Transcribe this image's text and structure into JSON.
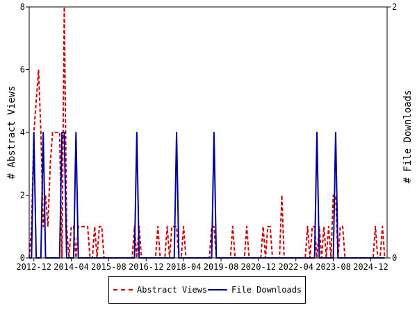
{
  "chart_data": {
    "type": "line",
    "xlabel": "",
    "ylabel_left": "# Abstract Views",
    "ylabel_right": "# File Downloads",
    "y_left_lim": [
      0,
      8
    ],
    "y_left_ticks": [
      "0",
      "2",
      "4",
      "6",
      "8"
    ],
    "y_right_lim": [
      0,
      2
    ],
    "y_right_ticks": [
      "0",
      "2"
    ],
    "x_range": [
      "2012-10",
      "2025-07"
    ],
    "x_ticks": [
      "2012-12",
      "2014-04",
      "2015-08",
      "2016-12",
      "2018-04",
      "2019-08",
      "2020-12",
      "2022-04",
      "2023-08",
      "2024-12"
    ],
    "grid": false,
    "legend_position": "bottom",
    "series": [
      {
        "name": "Abstract Views",
        "axis": "left",
        "color": "#cc0000",
        "style": "dashed",
        "points": [
          [
            "2012-10",
            0
          ],
          [
            "2012-11",
            1
          ],
          [
            "2012-12",
            4
          ],
          [
            "2013-01",
            5
          ],
          [
            "2013-02",
            6
          ],
          [
            "2013-03",
            4
          ],
          [
            "2013-04",
            1
          ],
          [
            "2013-05",
            2
          ],
          [
            "2013-06",
            1
          ],
          [
            "2013-07",
            3
          ],
          [
            "2013-08",
            4
          ],
          [
            "2013-09",
            4
          ],
          [
            "2013-10",
            4
          ],
          [
            "2013-11",
            4
          ],
          [
            "2013-12",
            0
          ],
          [
            "2014-01",
            8
          ],
          [
            "2014-02",
            1
          ],
          [
            "2014-03",
            0
          ],
          [
            "2014-04",
            1
          ],
          [
            "2014-05",
            1
          ],
          [
            "2014-06",
            0
          ],
          [
            "2014-07",
            1
          ],
          [
            "2014-08",
            1
          ],
          [
            "2014-09",
            1
          ],
          [
            "2014-10",
            1
          ],
          [
            "2014-11",
            1
          ],
          [
            "2014-12",
            0
          ],
          [
            "2015-01",
            0
          ],
          [
            "2015-02",
            1
          ],
          [
            "2015-03",
            0
          ],
          [
            "2015-04",
            1
          ],
          [
            "2015-05",
            1
          ],
          [
            "2015-06",
            0
          ],
          [
            "2015-07",
            0
          ],
          [
            "2015-08",
            0
          ],
          [
            "2015-09",
            0
          ],
          [
            "2015-10",
            0
          ],
          [
            "2015-11",
            0
          ],
          [
            "2015-12",
            0
          ],
          [
            "2016-01",
            0
          ],
          [
            "2016-02",
            0
          ],
          [
            "2016-03",
            0
          ],
          [
            "2016-04",
            0
          ],
          [
            "2016-05",
            0
          ],
          [
            "2016-06",
            0
          ],
          [
            "2016-07",
            1
          ],
          [
            "2016-08",
            0
          ],
          [
            "2016-09",
            1
          ],
          [
            "2016-10",
            0
          ],
          [
            "2016-11",
            0
          ],
          [
            "2016-12",
            0
          ],
          [
            "2017-01",
            0
          ],
          [
            "2017-02",
            0
          ],
          [
            "2017-03",
            0
          ],
          [
            "2017-04",
            0
          ],
          [
            "2017-05",
            1
          ],
          [
            "2017-06",
            0
          ],
          [
            "2017-07",
            0
          ],
          [
            "2017-08",
            0
          ],
          [
            "2017-09",
            1
          ],
          [
            "2017-10",
            0
          ],
          [
            "2017-11",
            1
          ],
          [
            "2017-12",
            1
          ],
          [
            "2018-01",
            1
          ],
          [
            "2018-02",
            0
          ],
          [
            "2018-03",
            0
          ],
          [
            "2018-04",
            1
          ],
          [
            "2018-05",
            0
          ],
          [
            "2018-06",
            0
          ],
          [
            "2018-07",
            0
          ],
          [
            "2018-08",
            0
          ],
          [
            "2018-09",
            0
          ],
          [
            "2018-10",
            0
          ],
          [
            "2018-11",
            0
          ],
          [
            "2018-12",
            0
          ],
          [
            "2019-01",
            0
          ],
          [
            "2019-02",
            0
          ],
          [
            "2019-03",
            0
          ],
          [
            "2019-04",
            1
          ],
          [
            "2019-05",
            1
          ],
          [
            "2019-06",
            0
          ],
          [
            "2019-07",
            0
          ],
          [
            "2019-08",
            0
          ],
          [
            "2019-09",
            0
          ],
          [
            "2019-10",
            0
          ],
          [
            "2019-11",
            0
          ],
          [
            "2019-12",
            0
          ],
          [
            "2020-01",
            1
          ],
          [
            "2020-02",
            0
          ],
          [
            "2020-03",
            0
          ],
          [
            "2020-04",
            0
          ],
          [
            "2020-05",
            0
          ],
          [
            "2020-06",
            0
          ],
          [
            "2020-07",
            1
          ],
          [
            "2020-08",
            0
          ],
          [
            "2020-09",
            0
          ],
          [
            "2020-10",
            0
          ],
          [
            "2020-11",
            0
          ],
          [
            "2020-12",
            0
          ],
          [
            "2021-01",
            0
          ],
          [
            "2021-02",
            1
          ],
          [
            "2021-03",
            0
          ],
          [
            "2021-04",
            1
          ],
          [
            "2021-05",
            1
          ],
          [
            "2021-06",
            0
          ],
          [
            "2021-07",
            0
          ],
          [
            "2021-08",
            0
          ],
          [
            "2021-09",
            0
          ],
          [
            "2021-10",
            2
          ],
          [
            "2021-11",
            0
          ],
          [
            "2021-12",
            0
          ],
          [
            "2022-01",
            0
          ],
          [
            "2022-02",
            0
          ],
          [
            "2022-03",
            0
          ],
          [
            "2022-04",
            0
          ],
          [
            "2022-05",
            0
          ],
          [
            "2022-06",
            0
          ],
          [
            "2022-07",
            0
          ],
          [
            "2022-08",
            0
          ],
          [
            "2022-09",
            1
          ],
          [
            "2022-10",
            0
          ],
          [
            "2022-11",
            1
          ],
          [
            "2022-12",
            1
          ],
          [
            "2023-01",
            0
          ],
          [
            "2023-02",
            1
          ],
          [
            "2023-03",
            0
          ],
          [
            "2023-04",
            1
          ],
          [
            "2023-05",
            0
          ],
          [
            "2023-06",
            1
          ],
          [
            "2023-07",
            0
          ],
          [
            "2023-08",
            2
          ],
          [
            "2023-09",
            2
          ],
          [
            "2023-10",
            0
          ],
          [
            "2023-11",
            1
          ],
          [
            "2023-12",
            1
          ],
          [
            "2024-01",
            0
          ],
          [
            "2024-02",
            0
          ],
          [
            "2024-03",
            0
          ],
          [
            "2024-04",
            0
          ],
          [
            "2024-05",
            0
          ],
          [
            "2024-06",
            0
          ],
          [
            "2024-07",
            0
          ],
          [
            "2024-08",
            0
          ],
          [
            "2024-09",
            0
          ],
          [
            "2024-10",
            0
          ],
          [
            "2024-11",
            0
          ],
          [
            "2024-12",
            0
          ],
          [
            "2025-01",
            0
          ],
          [
            "2025-02",
            1
          ],
          [
            "2025-03",
            0
          ],
          [
            "2025-04",
            0
          ],
          [
            "2025-05",
            1
          ],
          [
            "2025-06",
            0
          ]
        ]
      },
      {
        "name": "File Downloads",
        "axis": "right",
        "color": "#000099",
        "style": "solid",
        "points": [
          [
            "2012-10",
            0
          ],
          [
            "2012-11",
            0
          ],
          [
            "2012-12",
            1
          ],
          [
            "2013-01",
            0
          ],
          [
            "2013-02",
            0
          ],
          [
            "2013-03",
            0
          ],
          [
            "2013-04",
            1
          ],
          [
            "2013-05",
            0
          ],
          [
            "2013-06",
            0
          ],
          [
            "2013-07",
            0
          ],
          [
            "2013-08",
            0
          ],
          [
            "2013-09",
            0
          ],
          [
            "2013-10",
            0
          ],
          [
            "2013-11",
            0
          ],
          [
            "2013-12",
            1
          ],
          [
            "2014-01",
            1
          ],
          [
            "2014-02",
            0
          ],
          [
            "2014-03",
            0
          ],
          [
            "2014-04",
            0
          ],
          [
            "2014-05",
            0
          ],
          [
            "2014-06",
            1
          ],
          [
            "2014-07",
            0
          ],
          [
            "2014-08",
            0
          ],
          [
            "2014-09",
            0
          ],
          [
            "2014-10",
            0
          ],
          [
            "2014-11",
            0
          ],
          [
            "2014-12",
            0
          ],
          [
            "2015-01",
            0
          ],
          [
            "2015-02",
            0
          ],
          [
            "2015-03",
            0
          ],
          [
            "2015-04",
            0
          ],
          [
            "2015-05",
            0
          ],
          [
            "2015-06",
            0
          ],
          [
            "2015-07",
            0
          ],
          [
            "2015-08",
            0
          ],
          [
            "2015-09",
            0
          ],
          [
            "2015-10",
            0
          ],
          [
            "2015-11",
            0
          ],
          [
            "2015-12",
            0
          ],
          [
            "2016-01",
            0
          ],
          [
            "2016-02",
            0
          ],
          [
            "2016-03",
            0
          ],
          [
            "2016-04",
            0
          ],
          [
            "2016-05",
            0
          ],
          [
            "2016-06",
            0
          ],
          [
            "2016-07",
            0
          ],
          [
            "2016-08",
            1
          ],
          [
            "2016-09",
            0
          ],
          [
            "2016-10",
            0
          ],
          [
            "2016-11",
            0
          ],
          [
            "2016-12",
            0
          ],
          [
            "2017-01",
            0
          ],
          [
            "2017-02",
            0
          ],
          [
            "2017-03",
            0
          ],
          [
            "2017-04",
            0
          ],
          [
            "2017-05",
            0
          ],
          [
            "2017-06",
            0
          ],
          [
            "2017-07",
            0
          ],
          [
            "2017-08",
            0
          ],
          [
            "2017-09",
            0
          ],
          [
            "2017-10",
            0
          ],
          [
            "2017-11",
            0
          ],
          [
            "2017-12",
            0
          ],
          [
            "2018-01",
            1
          ],
          [
            "2018-02",
            0
          ],
          [
            "2018-03",
            0
          ],
          [
            "2018-04",
            0
          ],
          [
            "2018-05",
            0
          ],
          [
            "2018-06",
            0
          ],
          [
            "2018-07",
            0
          ],
          [
            "2018-08",
            0
          ],
          [
            "2018-09",
            0
          ],
          [
            "2018-10",
            0
          ],
          [
            "2018-11",
            0
          ],
          [
            "2018-12",
            0
          ],
          [
            "2019-01",
            0
          ],
          [
            "2019-02",
            0
          ],
          [
            "2019-03",
            0
          ],
          [
            "2019-04",
            0
          ],
          [
            "2019-05",
            1
          ],
          [
            "2019-06",
            0
          ],
          [
            "2019-07",
            0
          ],
          [
            "2019-08",
            0
          ],
          [
            "2019-09",
            0
          ],
          [
            "2019-10",
            0
          ],
          [
            "2019-11",
            0
          ],
          [
            "2019-12",
            0
          ],
          [
            "2020-01",
            0
          ],
          [
            "2020-02",
            0
          ],
          [
            "2020-03",
            0
          ],
          [
            "2020-04",
            0
          ],
          [
            "2020-05",
            0
          ],
          [
            "2020-06",
            0
          ],
          [
            "2020-07",
            0
          ],
          [
            "2020-08",
            0
          ],
          [
            "2020-09",
            0
          ],
          [
            "2020-10",
            0
          ],
          [
            "2020-11",
            0
          ],
          [
            "2020-12",
            0
          ],
          [
            "2021-01",
            0
          ],
          [
            "2021-02",
            0
          ],
          [
            "2021-03",
            0
          ],
          [
            "2021-04",
            0
          ],
          [
            "2021-05",
            0
          ],
          [
            "2021-06",
            0
          ],
          [
            "2021-07",
            0
          ],
          [
            "2021-08",
            0
          ],
          [
            "2021-09",
            0
          ],
          [
            "2021-10",
            0
          ],
          [
            "2021-11",
            0
          ],
          [
            "2021-12",
            0
          ],
          [
            "2022-01",
            0
          ],
          [
            "2022-02",
            0
          ],
          [
            "2022-03",
            0
          ],
          [
            "2022-04",
            0
          ],
          [
            "2022-05",
            0
          ],
          [
            "2022-06",
            0
          ],
          [
            "2022-07",
            0
          ],
          [
            "2022-08",
            0
          ],
          [
            "2022-09",
            0
          ],
          [
            "2022-10",
            0
          ],
          [
            "2022-11",
            0
          ],
          [
            "2022-12",
            0
          ],
          [
            "2023-01",
            1
          ],
          [
            "2023-02",
            0
          ],
          [
            "2023-03",
            0
          ],
          [
            "2023-04",
            0
          ],
          [
            "2023-05",
            0
          ],
          [
            "2023-06",
            0
          ],
          [
            "2023-07",
            0
          ],
          [
            "2023-08",
            0
          ],
          [
            "2023-09",
            1
          ],
          [
            "2023-10",
            0
          ],
          [
            "2023-11",
            0
          ],
          [
            "2023-12",
            0
          ],
          [
            "2024-01",
            0
          ],
          [
            "2024-02",
            0
          ],
          [
            "2024-03",
            0
          ],
          [
            "2024-04",
            0
          ],
          [
            "2024-05",
            0
          ],
          [
            "2024-06",
            0
          ],
          [
            "2024-07",
            0
          ],
          [
            "2024-08",
            0
          ],
          [
            "2024-09",
            0
          ],
          [
            "2024-10",
            0
          ],
          [
            "2024-11",
            0
          ],
          [
            "2024-12",
            0
          ],
          [
            "2025-01",
            0
          ],
          [
            "2025-02",
            0
          ],
          [
            "2025-03",
            0
          ],
          [
            "2025-04",
            0
          ],
          [
            "2025-05",
            0
          ],
          [
            "2025-06",
            0
          ]
        ]
      }
    ]
  }
}
